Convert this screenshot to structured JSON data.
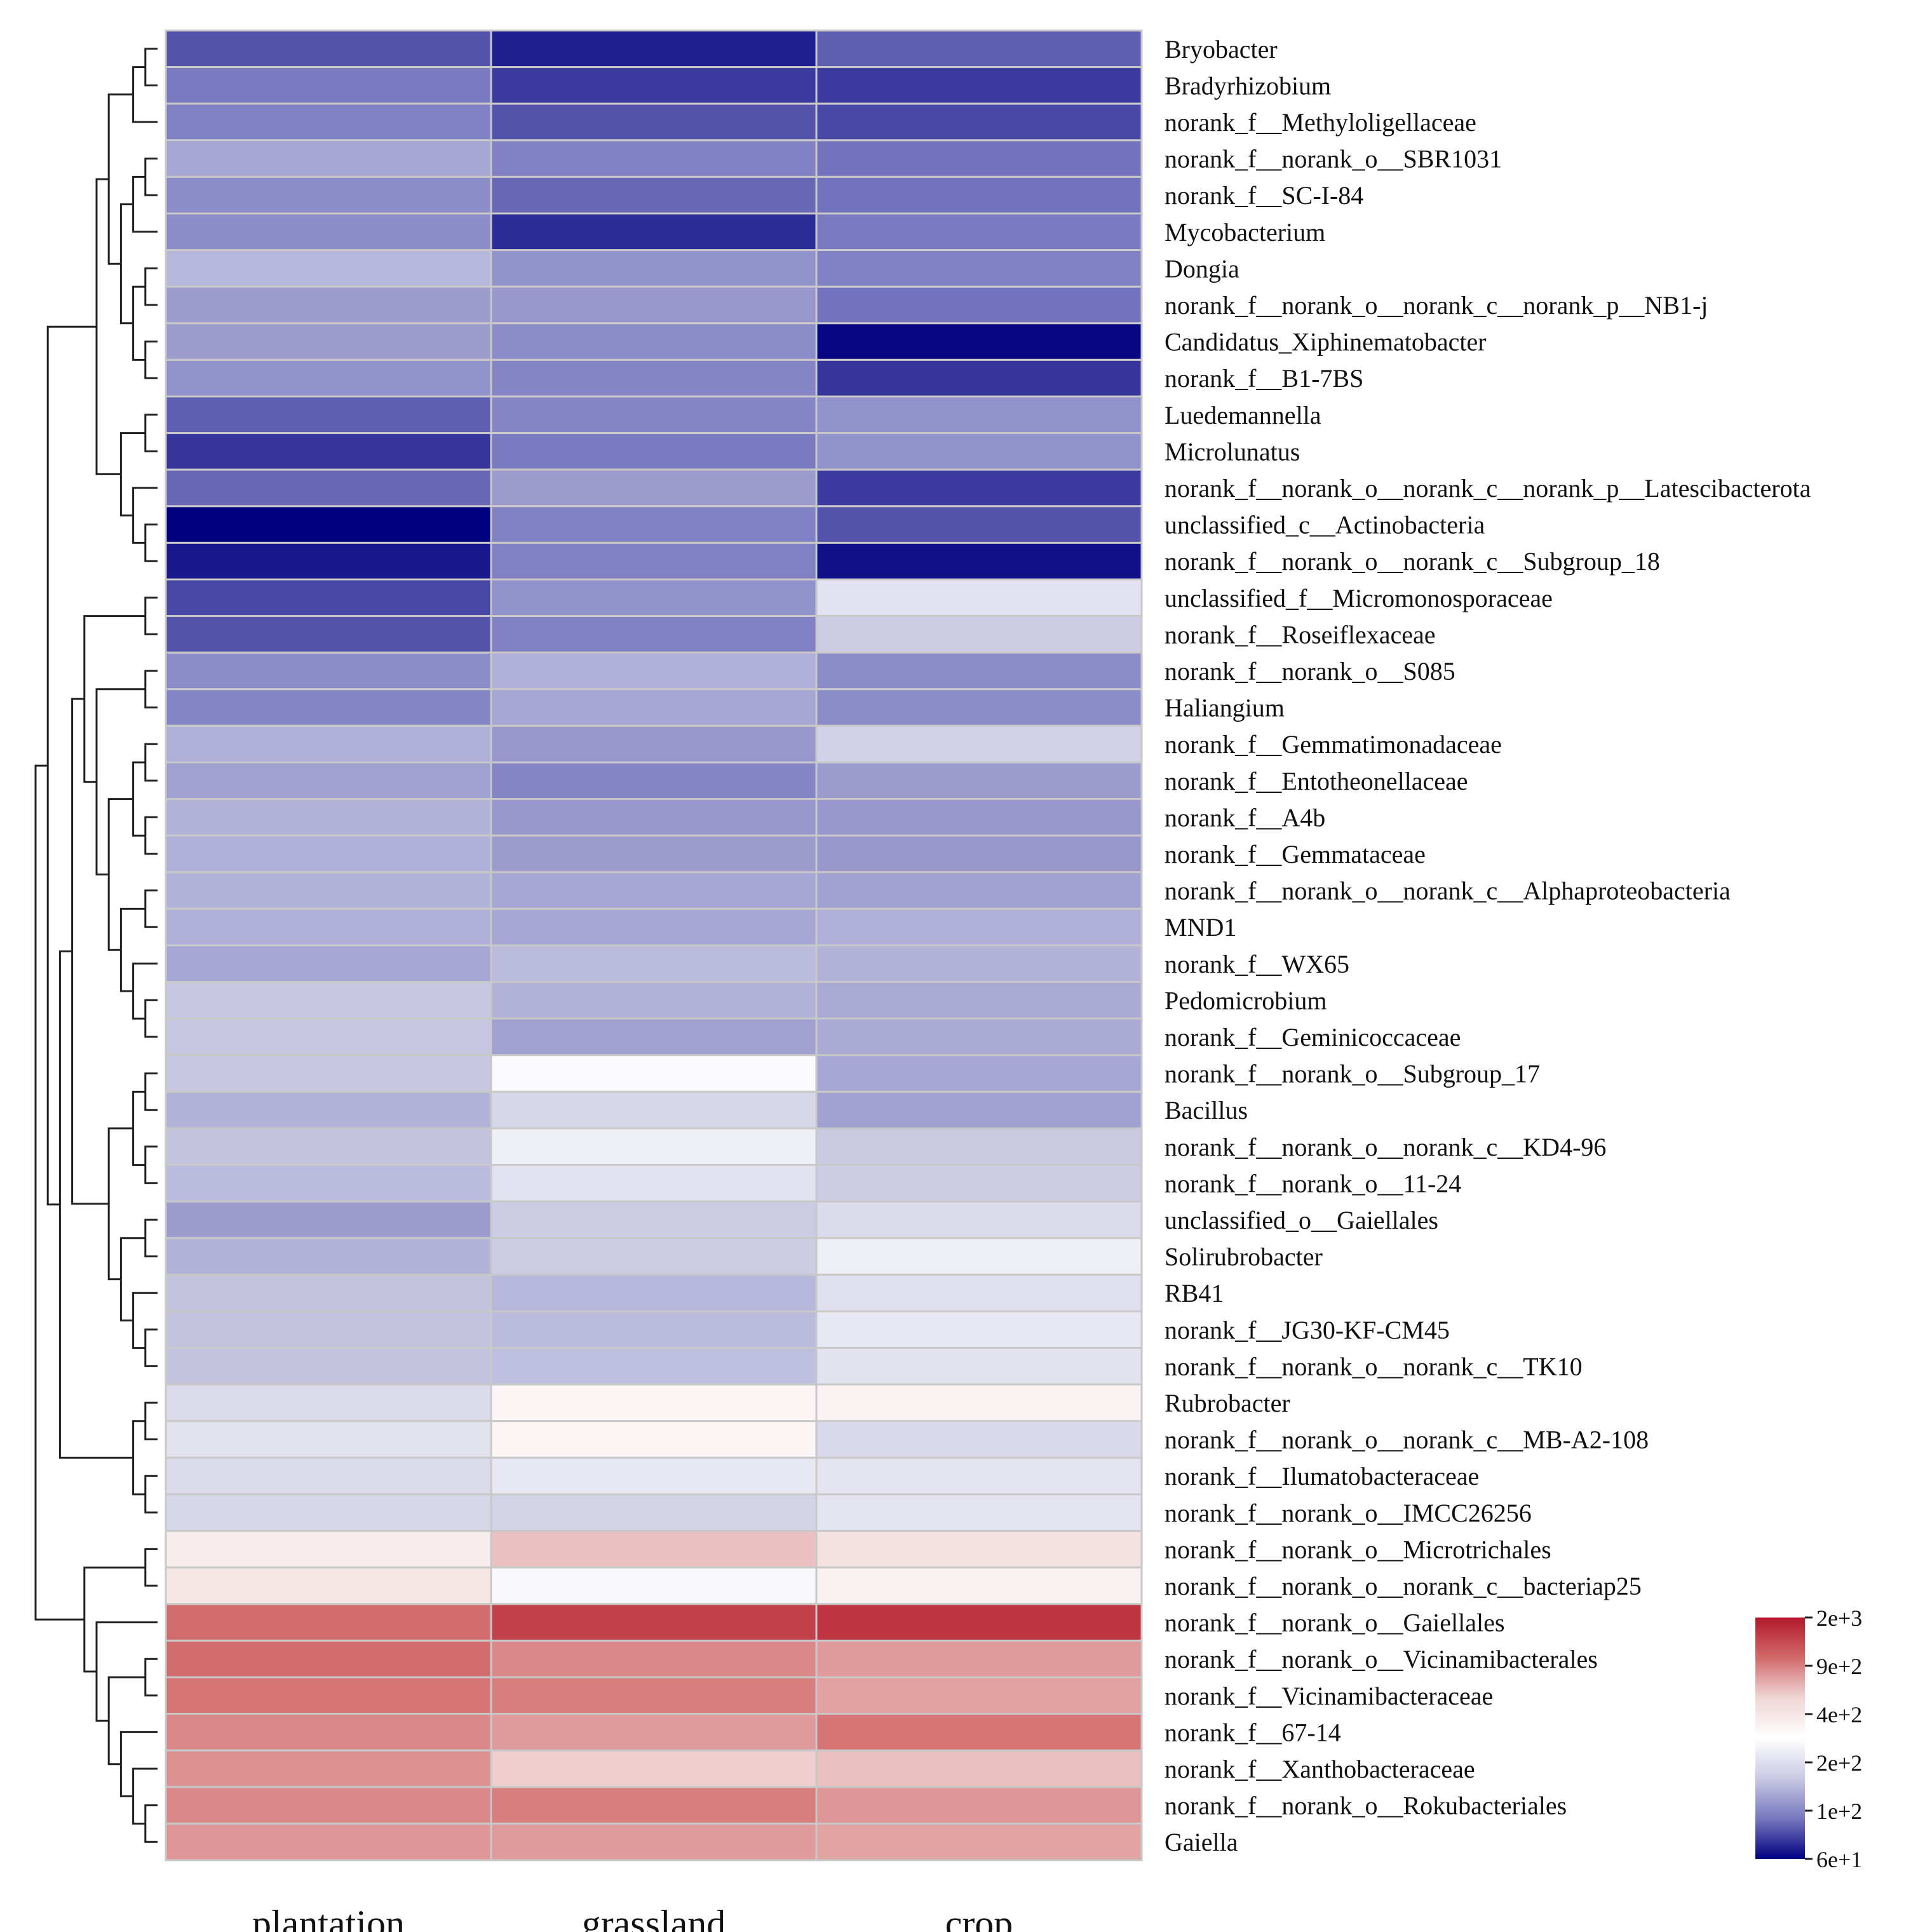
{
  "chart_data": {
    "type": "heatmap",
    "title": "",
    "columns": [
      "plantation",
      "grassland",
      "crop"
    ],
    "rows": [
      "Bryobacter",
      "Bradyrhizobium",
      "norank_f__Methyloligellaceae",
      "norank_f__norank_o__SBR1031",
      "norank_f__SC-I-84",
      "Mycobacterium",
      "Dongia",
      "norank_f__norank_o__norank_c__norank_p__NB1-j",
      "Candidatus_Xiphinematobacter",
      "norank_f__B1-7BS",
      "Luedemannella",
      "Microlunatus",
      "norank_f__norank_o__norank_c__norank_p__Latescibacterota",
      "unclassified_c__Actinobacteria",
      "norank_f__norank_o__norank_c__Subgroup_18",
      "unclassified_f__Micromonosporaceae",
      "norank_f__Roseiflexaceae",
      "norank_f__norank_o__S085",
      "Haliangium",
      "norank_f__Gemmatimonadaceae",
      "norank_f__Entotheonellaceae",
      "norank_f__A4b",
      "norank_f__Gemmataceae",
      "norank_f__norank_o__norank_c__Alphaproteobacteria",
      "MND1",
      "norank_f__WX65",
      "Pedomicrobium",
      "norank_f__Geminicoccaceae",
      "norank_f__norank_o__Subgroup_17",
      "Bacillus",
      "norank_f__norank_o__norank_c__KD4-96",
      "norank_f__norank_o__11-24",
      "unclassified_o__Gaiellales",
      "Solirubrobacter",
      "RB41",
      "norank_f__JG30-KF-CM45",
      "norank_f__norank_o__norank_c__TK10",
      "Rubrobacter",
      "norank_f__norank_o__norank_c__MB-A2-108",
      "norank_f__Ilumatobacteraceae",
      "norank_f__norank_o__IMCC26256",
      "norank_f__norank_o__Microtrichales",
      "norank_f__norank_o__norank_c__bacteriap25",
      "norank_f__norank_o__Gaiellales",
      "norank_f__norank_o__Vicinamibacterales",
      "norank_f__Vicinamibacteraceae",
      "norank_f__67-14",
      "norank_f__Xanthobacteraceae",
      "norank_f__norank_o__Rokubacteriales",
      "Gaiella"
    ],
    "values": [
      [
        90,
        70,
        95
      ],
      [
        110,
        80,
        80
      ],
      [
        115,
        90,
        85
      ],
      [
        150,
        115,
        105
      ],
      [
        125,
        100,
        105
      ],
      [
        125,
        75,
        110
      ],
      [
        170,
        130,
        115
      ],
      [
        140,
        135,
        105
      ],
      [
        140,
        125,
        62
      ],
      [
        130,
        120,
        78
      ],
      [
        95,
        120,
        130
      ],
      [
        78,
        110,
        130
      ],
      [
        100,
        140,
        80
      ],
      [
        60,
        115,
        90
      ],
      [
        68,
        115,
        65
      ],
      [
        85,
        130,
        250
      ],
      [
        90,
        115,
        200
      ],
      [
        125,
        160,
        125
      ],
      [
        120,
        150,
        125
      ],
      [
        160,
        135,
        210
      ],
      [
        145,
        120,
        140
      ],
      [
        165,
        135,
        135
      ],
      [
        160,
        140,
        135
      ],
      [
        165,
        150,
        145
      ],
      [
        160,
        150,
        160
      ],
      [
        150,
        175,
        165
      ],
      [
        190,
        165,
        155
      ],
      [
        190,
        145,
        155
      ],
      [
        190,
        330,
        150
      ],
      [
        165,
        225,
        145
      ],
      [
        185,
        290,
        195
      ],
      [
        175,
        250,
        200
      ],
      [
        140,
        200,
        235
      ],
      [
        165,
        200,
        290
      ],
      [
        185,
        170,
        245
      ],
      [
        185,
        175,
        270
      ],
      [
        185,
        180,
        255
      ],
      [
        235,
        400,
        410
      ],
      [
        255,
        400,
        230
      ],
      [
        235,
        270,
        260
      ],
      [
        225,
        215,
        260
      ],
      [
        460,
        700,
        530
      ],
      [
        500,
        320,
        430
      ],
      [
        1100,
        1500,
        1650
      ],
      [
        1100,
        950,
        860
      ],
      [
        1050,
        1000,
        830
      ],
      [
        950,
        850,
        1050
      ],
      [
        900,
        650,
        700
      ],
      [
        950,
        1000,
        880
      ],
      [
        880,
        850,
        820
      ]
    ],
    "colorbar": {
      "ticks": [
        "2e+3",
        "9e+2",
        "4e+2",
        "2e+2",
        "1e+2",
        "6e+1"
      ],
      "colors": [
        "#b2182b",
        "#d26a6a",
        "#f0d6d6",
        "#ffffff",
        "#c9c9e3",
        "#7777bf",
        "#000080"
      ]
    },
    "xlabel": "",
    "ylabel": ""
  }
}
